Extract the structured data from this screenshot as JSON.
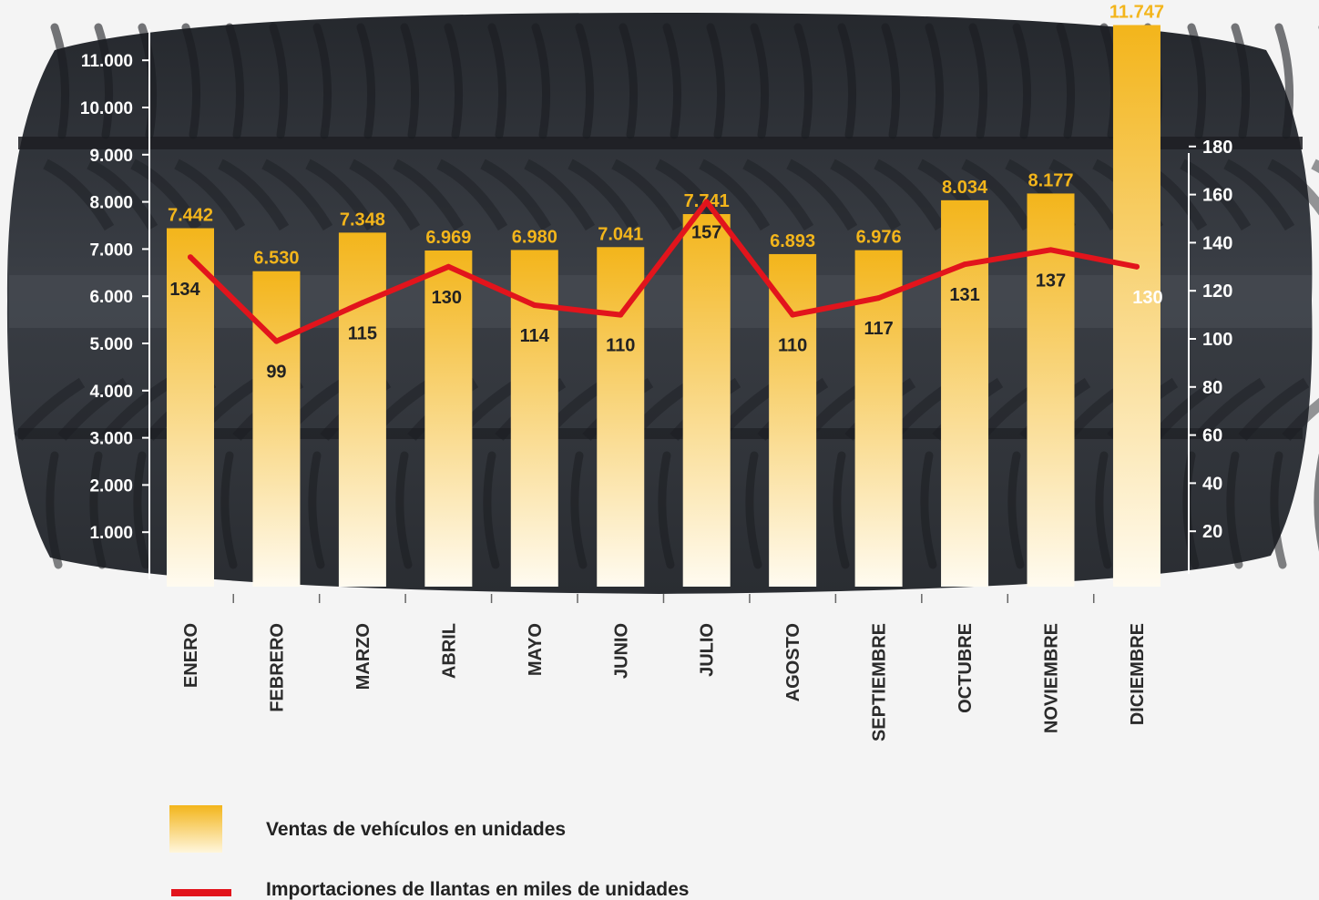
{
  "colors": {
    "bar_top": "#f3b51b",
    "bar_bottom": "#fffbf0",
    "line": "#e2141c",
    "tire": "#2e3137"
  },
  "chart_data": {
    "type": "bar",
    "categories": [
      "ENERO",
      "FEBRERO",
      "MARZO",
      "ABRIL",
      "MAYO",
      "JUNIO",
      "JULIO",
      "AGOSTO",
      "SEPTIEMBRE",
      "OCTUBRE",
      "NOVIEMBRE",
      "DICIEMBRE"
    ],
    "series": [
      {
        "name": "Ventas de vehículos en unidades",
        "type": "bar",
        "axis": "left",
        "values": [
          7442,
          6530,
          7348,
          6969,
          6980,
          7041,
          7741,
          6893,
          6976,
          8034,
          8177,
          11747
        ],
        "labels": [
          "7.442",
          "6.530",
          "7.348",
          "6.969",
          "6.980",
          "7.041",
          "7.741",
          "6.893",
          "6.976",
          "8.034",
          "8.177",
          "11.747"
        ]
      },
      {
        "name": "Importaciones de llantas en miles de unidades",
        "type": "line",
        "axis": "right",
        "values": [
          134,
          99,
          115,
          130,
          114,
          110,
          157,
          110,
          117,
          131,
          137,
          130
        ],
        "labels": [
          "134",
          "99",
          "115",
          "130",
          "114",
          "110",
          "157",
          "110",
          "117",
          "131",
          "137",
          "130"
        ]
      }
    ],
    "y_left": {
      "ticks": [
        "1.000",
        "2.000",
        "3.000",
        "4.000",
        "5.000",
        "6.000",
        "7.000",
        "8.000",
        "9.000",
        "10.000",
        "11.000"
      ],
      "tick_values": [
        1000,
        2000,
        3000,
        4000,
        5000,
        6000,
        7000,
        8000,
        9000,
        10000,
        11000
      ],
      "range": [
        0,
        12000
      ]
    },
    "y_right": {
      "ticks": [
        "20",
        "40",
        "60",
        "80",
        "100",
        "120",
        "140",
        "160",
        "180"
      ],
      "tick_values": [
        20,
        40,
        60,
        80,
        100,
        120,
        140,
        160,
        180
      ],
      "range": [
        0,
        200
      ]
    },
    "grid": false,
    "legend_position": "bottom-left"
  }
}
